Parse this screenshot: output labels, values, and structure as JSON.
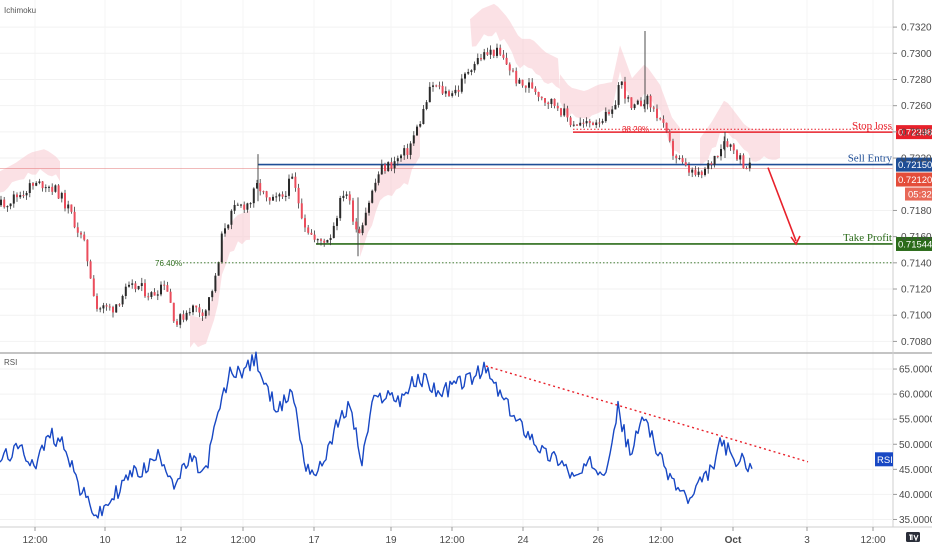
{
  "chart_data": [
    {
      "type": "candlestick",
      "pane_title": "Ichimoku",
      "price_axis": {
        "ylim": [
          0.707,
          0.733
        ],
        "ticks": [
          "0.73200",
          "0.73000",
          "0.72800",
          "0.72600",
          "0.72400",
          "0.72200",
          "0.71800",
          "0.71600",
          "0.71400",
          "0.71200",
          "0.71000",
          "0.70800"
        ]
      },
      "time_axis": {
        "ticks": [
          "12:00",
          "10",
          "12",
          "12:00",
          "17",
          "19",
          "12:00",
          "24",
          "26",
          "12:00",
          "Oct",
          "3",
          "12:00"
        ]
      },
      "levels": [
        {
          "label": "Stop loss",
          "value": 0.72398,
          "value_text": "0.72398",
          "color": "#e8212b"
        },
        {
          "label": "Sell Entry",
          "value": 0.7215,
          "value_text": "0.72150",
          "color": "#1f4e96"
        },
        {
          "label": "Take Profit",
          "value": 0.71544,
          "value_text": "0.71544",
          "color": "#2b6b1a"
        }
      ],
      "current_price": {
        "value": 0.7212,
        "value_text": "0.72120",
        "countdown": "05:32",
        "color": "#e44d3a"
      },
      "fibonacci": [
        {
          "label": "38.20%",
          "value": 0.7242
        },
        {
          "label": "76.40%",
          "value": 0.714
        }
      ],
      "colors": {
        "bull": "#53b987",
        "bear": "#eb4d5c",
        "cloud": "#f7c9cf",
        "level_line": "#e06666"
      }
    },
    {
      "type": "line",
      "pane_title": "RSI",
      "series_label": "RSI",
      "ylim": [
        33,
        68
      ],
      "ticks": [
        "65.0000",
        "60.0000",
        "55.0000",
        "50.0000",
        "45.0000",
        "40.0000",
        "35.0000"
      ],
      "color": "#1848c4"
    }
  ],
  "icons": {
    "time_axis_logo": "tradingview-logo-icon"
  }
}
